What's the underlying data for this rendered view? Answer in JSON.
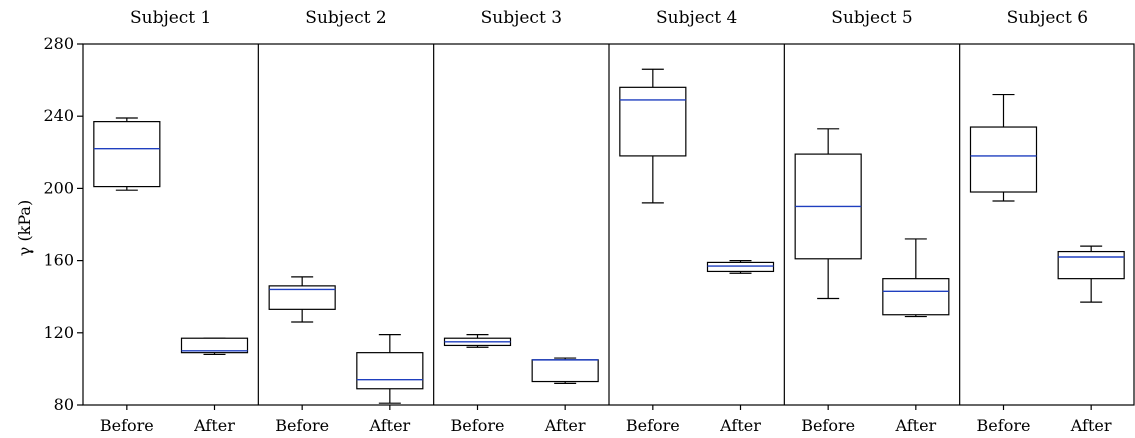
{
  "chart_data": {
    "type": "box",
    "ylabel": "γ (kPa)",
    "ylim": [
      80,
      280
    ],
    "yticks": [
      80,
      120,
      160,
      200,
      240,
      280
    ],
    "grid": false,
    "groups": [
      "Before",
      "After"
    ],
    "median_color": "#1f3fbf",
    "subjects": [
      {
        "title": "Subject 1",
        "boxes": [
          {
            "label": "Before",
            "min": 199,
            "q1": 201,
            "median": 222,
            "q3": 237,
            "max": 239
          },
          {
            "label": "After",
            "min": 108,
            "q1": 109,
            "median": 110,
            "q3": 117,
            "max": 117
          }
        ]
      },
      {
        "title": "Subject 2",
        "boxes": [
          {
            "label": "Before",
            "min": 126,
            "q1": 133,
            "median": 144,
            "q3": 146,
            "max": 151
          },
          {
            "label": "After",
            "min": 81,
            "q1": 89,
            "median": 94,
            "q3": 109,
            "max": 119
          }
        ]
      },
      {
        "title": "Subject 3",
        "boxes": [
          {
            "label": "Before",
            "min": 112,
            "q1": 113,
            "median": 115,
            "q3": 117,
            "max": 119
          },
          {
            "label": "After",
            "min": 92,
            "q1": 93,
            "median": 105,
            "q3": 105,
            "max": 106
          }
        ]
      },
      {
        "title": "Subject 4",
        "boxes": [
          {
            "label": "Before",
            "min": 192,
            "q1": 218,
            "median": 249,
            "q3": 256,
            "max": 266
          },
          {
            "label": "After",
            "min": 153,
            "q1": 154,
            "median": 157,
            "q3": 159,
            "max": 160
          }
        ]
      },
      {
        "title": "Subject 5",
        "boxes": [
          {
            "label": "Before",
            "min": 139,
            "q1": 161,
            "median": 190,
            "q3": 219,
            "max": 233
          },
          {
            "label": "After",
            "min": 129,
            "q1": 130,
            "median": 143,
            "q3": 150,
            "max": 172
          }
        ]
      },
      {
        "title": "Subject 6",
        "boxes": [
          {
            "label": "Before",
            "min": 193,
            "q1": 198,
            "median": 218,
            "q3": 234,
            "max": 252
          },
          {
            "label": "After",
            "min": 137,
            "q1": 150,
            "median": 162,
            "q3": 165,
            "max": 168
          }
        ]
      }
    ]
  }
}
